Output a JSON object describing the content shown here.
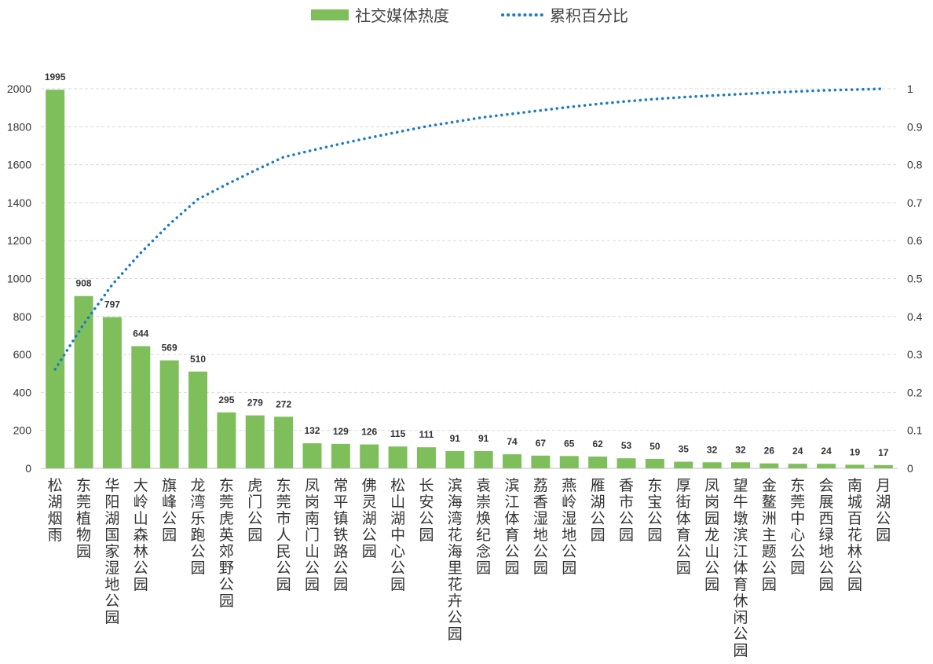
{
  "chart_data": {
    "type": "bar",
    "categories": [
      "松湖烟雨",
      "东莞植物园",
      "华阳湖国家湿地公园",
      "大岭山森林公园",
      "旗峰公园",
      "龙湾乐跑公园",
      "东莞虎英郊野公园",
      "虎门公园",
      "东莞市人民公园",
      "凤岗南门山公园",
      "常平镇铁路公园",
      "佛灵湖公园",
      "松山湖中心公园",
      "长安公园",
      "滨海湾花海里花卉公园",
      "袁崇焕纪念园",
      "滨江体育公园",
      "荔香湿地公园",
      "燕岭湿地公园",
      "雁湖公园",
      "香市公园",
      "东宝公园",
      "厚街体育公园",
      "凤岗园龙山公园",
      "望牛墩滨江体育休闲公园",
      "金鳌洲主题公园",
      "东莞中心公园",
      "会展西绿地公园",
      "南城百花林公园",
      "月湖公园"
    ],
    "series": [
      {
        "name": "社交媒体热度",
        "type": "bar",
        "axis": "left",
        "color": "#7fbf5b",
        "values": [
          1995,
          908,
          797,
          644,
          569,
          510,
          295,
          279,
          272,
          132,
          129,
          126,
          115,
          111,
          91,
          91,
          74,
          67,
          65,
          62,
          53,
          50,
          35,
          32,
          32,
          26,
          24,
          24,
          19,
          17
        ]
      },
      {
        "name": "累积百分比",
        "type": "line",
        "style": "dotted",
        "axis": "right",
        "color": "#1a7ac8",
        "values": [
          0.261,
          0.38,
          0.484,
          0.568,
          0.643,
          0.709,
          0.748,
          0.785,
          0.82,
          0.838,
          0.855,
          0.871,
          0.886,
          0.901,
          0.913,
          0.925,
          0.934,
          0.943,
          0.952,
          0.96,
          0.967,
          0.973,
          0.978,
          0.982,
          0.986,
          0.99,
          0.993,
          0.996,
          0.998,
          1.0
        ]
      }
    ],
    "data_labels": [
      "1995",
      "908",
      "797",
      "644",
      "569",
      "510",
      "295",
      "279",
      "272",
      "132",
      "129",
      "126",
      "115",
      "111",
      "91",
      "91",
      "74",
      "67",
      "65",
      "62",
      "53",
      "50",
      "35",
      "32",
      "32",
      "26",
      "24",
      "24",
      "19",
      "17"
    ],
    "ylim": [
      0,
      2000
    ],
    "y_ticks": [
      "0",
      "200",
      "400",
      "600",
      "800",
      "1000",
      "1200",
      "1400",
      "1600",
      "1800",
      "2000"
    ],
    "y2lim": [
      0,
      1
    ],
    "y2_ticks": [
      "0",
      "0.1",
      "0.2",
      "0.3",
      "0.4",
      "0.5",
      "0.6",
      "0.7",
      "0.8",
      "0.9",
      "1"
    ],
    "grid": true,
    "legend_position": "top-center"
  }
}
